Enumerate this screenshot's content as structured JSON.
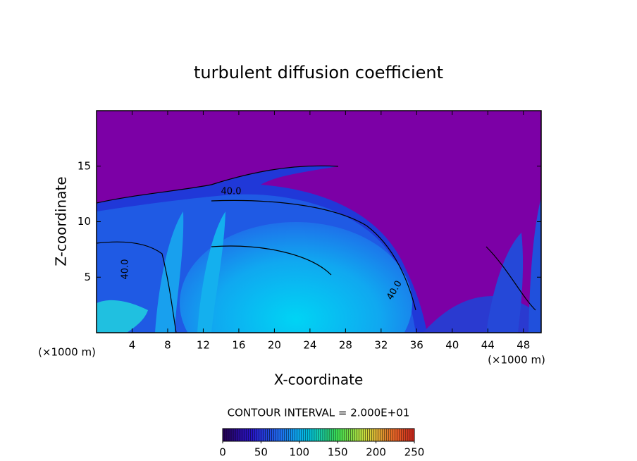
{
  "chart_data": {
    "type": "contour",
    "title": "turbulent diffusion coefficient",
    "x_label": "X-coordinate",
    "y_label": "Z-coordinate",
    "x_unit": "(×1000 m)",
    "y_unit": "(×1000 m)",
    "xlim": [
      0,
      50
    ],
    "xticks": [
      4,
      8,
      12,
      16,
      20,
      24,
      28,
      32,
      36,
      40,
      44,
      48
    ],
    "ylim": [
      0,
      20
    ],
    "yticks": [
      5,
      10,
      15
    ],
    "contour_interval": "CONTOUR INTERVAL = 2.000E+01",
    "contour_labels": [
      "40.0",
      "40.0",
      "40.0"
    ],
    "colorbar": {
      "lim": [
        0,
        250
      ],
      "ticks": [
        0,
        50,
        100,
        150,
        200,
        250
      ]
    }
  }
}
